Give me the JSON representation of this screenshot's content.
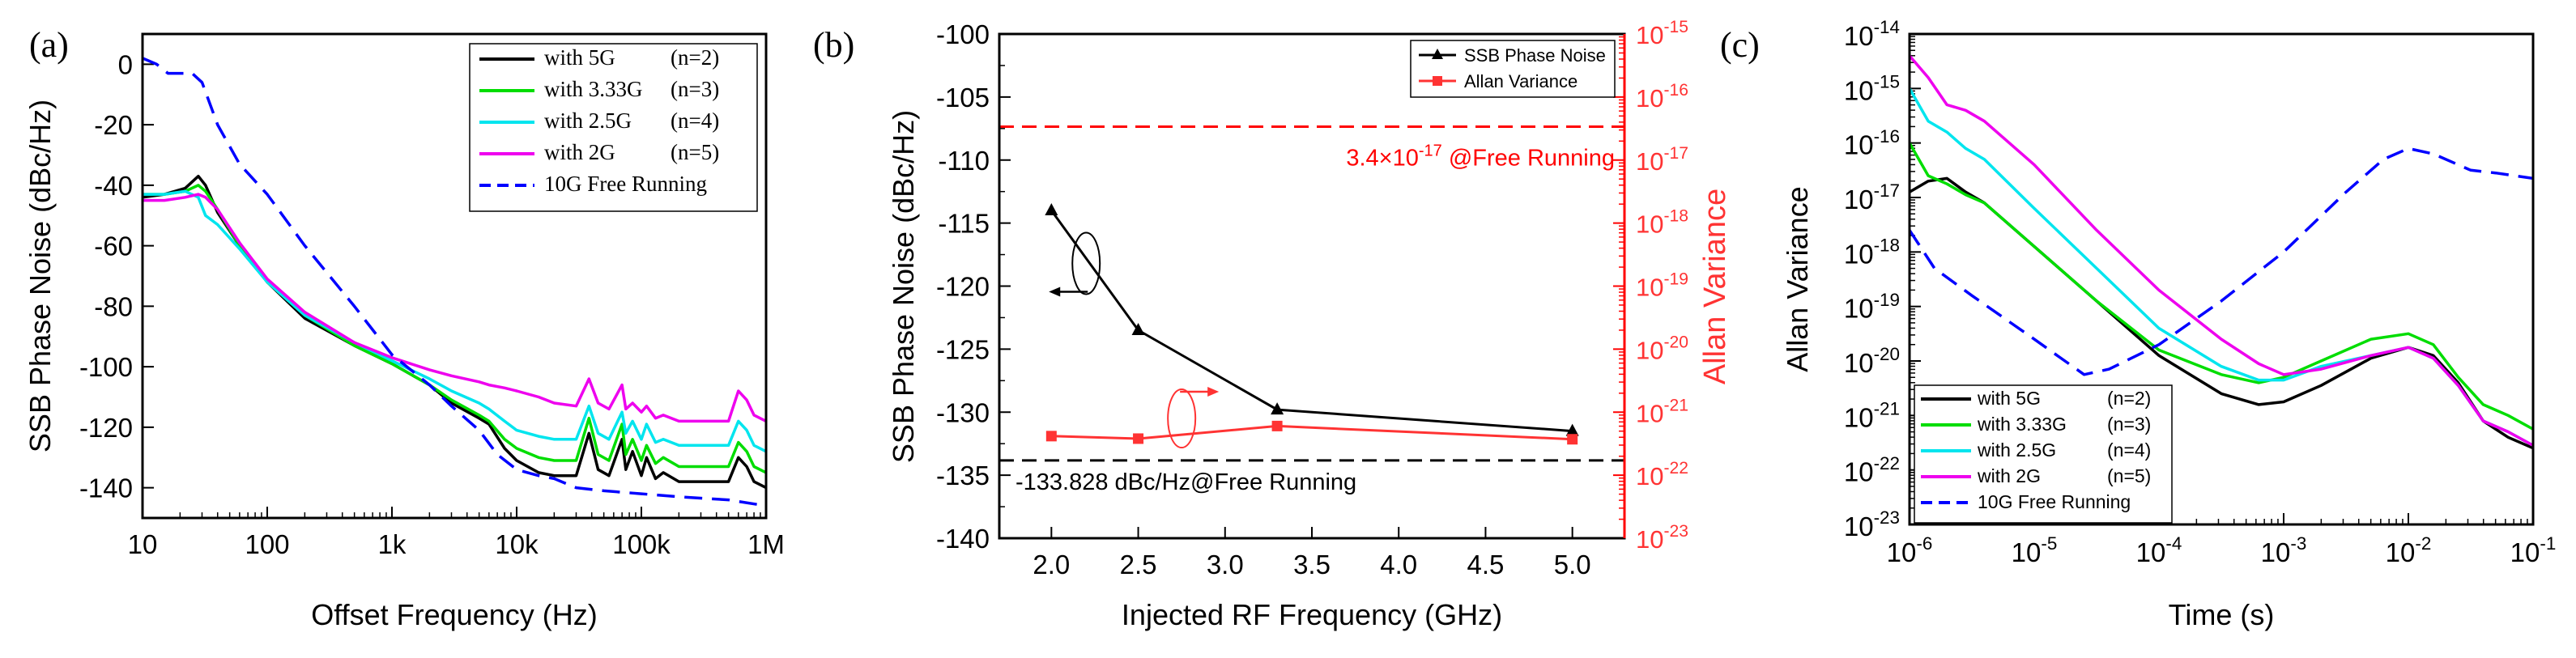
{
  "chart_data": [
    {
      "panel": "(a)",
      "type": "line",
      "xlabel": "Offset Frequency (Hz)",
      "ylabel": "SSB Phase Noise (dBc/Hz)",
      "xscale": "log",
      "xlim": [
        10,
        1000000
      ],
      "ylim": [
        -150,
        10
      ],
      "xticks": [
        10,
        100,
        1000,
        10000,
        100000,
        1000000
      ],
      "xtick_labels": [
        "10",
        "100",
        "1k",
        "10k",
        "100k",
        "1M"
      ],
      "yticks": [
        0,
        -20,
        -40,
        -60,
        -80,
        -100,
        -120,
        -140
      ],
      "ytick_labels": [
        "0",
        "-20",
        "-40",
        "-60",
        "-80",
        "-100",
        "-120",
        "-140"
      ],
      "legend_position": "top-right",
      "series": [
        {
          "name": "with 5G",
          "tag": "(n=2)",
          "color": "#000000",
          "dash": "solid",
          "x": [
            10,
            15,
            22,
            28,
            32,
            40,
            60,
            100,
            200,
            500,
            1000,
            2000,
            3000,
            5000,
            6000,
            8000,
            10000,
            15000,
            20000,
            30000,
            38000,
            45000,
            55000,
            70000,
            75000,
            85000,
            100000,
            110000,
            130000,
            150000,
            200000,
            300000,
            400000,
            500000,
            600000,
            700000,
            800000,
            1000000
          ],
          "y": [
            -44,
            -43,
            -41,
            -37,
            -40,
            -49,
            -60,
            -72,
            -84,
            -93,
            -99,
            -106,
            -112,
            -117,
            -119,
            -127,
            -131,
            -135,
            -136,
            -136,
            -122,
            -134,
            -136,
            -124,
            -134,
            -128,
            -136,
            -130,
            -137,
            -135,
            -138,
            -138,
            -138,
            -138,
            -130,
            -133,
            -138,
            -140
          ]
        },
        {
          "name": "with 3.33G",
          "tag": "(n=3)",
          "color": "#00dd00",
          "dash": "solid",
          "x": [
            10,
            15,
            22,
            28,
            32,
            40,
            60,
            100,
            200,
            500,
            1000,
            2000,
            3000,
            5000,
            6000,
            8000,
            10000,
            15000,
            20000,
            30000,
            38000,
            45000,
            55000,
            70000,
            75000,
            85000,
            100000,
            110000,
            130000,
            150000,
            200000,
            300000,
            400000,
            500000,
            600000,
            700000,
            800000,
            1000000
          ],
          "y": [
            -43,
            -43,
            -42,
            -40,
            -42,
            -48,
            -60,
            -72,
            -83,
            -93,
            -99,
            -106,
            -111,
            -116,
            -118,
            -124,
            -127,
            -130,
            -131,
            -131,
            -117,
            -129,
            -131,
            -119,
            -129,
            -124,
            -131,
            -126,
            -132,
            -130,
            -133,
            -133,
            -133,
            -133,
            -125,
            -128,
            -133,
            -135
          ]
        },
        {
          "name": "with 2.5G",
          "tag": "(n=4)",
          "color": "#00e5ee",
          "dash": "solid",
          "x": [
            10,
            15,
            22,
            28,
            32,
            40,
            60,
            100,
            200,
            500,
            1000,
            2000,
            3000,
            5000,
            6000,
            8000,
            10000,
            15000,
            20000,
            30000,
            38000,
            45000,
            55000,
            70000,
            75000,
            85000,
            100000,
            110000,
            130000,
            150000,
            200000,
            300000,
            400000,
            500000,
            600000,
            700000,
            800000,
            1000000
          ],
          "y": [
            -43,
            -43,
            -42,
            -44,
            -50,
            -53,
            -61,
            -72,
            -83,
            -92,
            -98,
            -104,
            -108,
            -112,
            -114,
            -118,
            -121,
            -123,
            -124,
            -124,
            -113,
            -122,
            -124,
            -115,
            -122,
            -118,
            -124,
            -119,
            -125,
            -124,
            -126,
            -126,
            -126,
            -126,
            -118,
            -121,
            -126,
            -128
          ]
        },
        {
          "name": "with 2G",
          "tag": "(n=5)",
          "color": "#ee00ee",
          "dash": "solid",
          "x": [
            10,
            15,
            22,
            28,
            32,
            40,
            60,
            100,
            200,
            500,
            1000,
            2000,
            3000,
            5000,
            6000,
            8000,
            10000,
            15000,
            20000,
            30000,
            38000,
            45000,
            55000,
            70000,
            75000,
            85000,
            100000,
            110000,
            130000,
            150000,
            200000,
            300000,
            400000,
            500000,
            600000,
            700000,
            800000,
            1000000
          ],
          "y": [
            -45,
            -45,
            -44,
            -43,
            -44,
            -48,
            -59,
            -71,
            -82,
            -92,
            -97,
            -101,
            -103,
            -105,
            -106,
            -107,
            -108,
            -110,
            -112,
            -113,
            -104,
            -112,
            -114,
            -106,
            -114,
            -112,
            -115,
            -113,
            -117,
            -116,
            -118,
            -118,
            -118,
            -118,
            -108,
            -111,
            -116,
            -118
          ]
        },
        {
          "name": "10G Free Running",
          "tag": "",
          "color": "#0000ff",
          "dash": "dashed",
          "x": [
            10,
            13,
            16,
            20,
            25,
            30,
            40,
            60,
            100,
            200,
            500,
            1000,
            2000,
            3000,
            5000,
            7000,
            10000,
            15000,
            20000,
            30000,
            50000,
            100000,
            200000,
            500000,
            1000000
          ],
          "y": [
            2,
            0,
            -3,
            -3,
            -3,
            -6,
            -20,
            -33,
            -43,
            -60,
            -80,
            -96,
            -106,
            -113,
            -121,
            -129,
            -134,
            -136,
            -137,
            -140,
            -141,
            -142,
            -143,
            -144,
            -146
          ]
        }
      ]
    },
    {
      "panel": "(b)",
      "type": "line",
      "xlabel": "Injected RF Frequency (GHz)",
      "ylabel": "SSB Phase Noise (dBc/Hz)",
      "ylabel_right": "Allan Variance",
      "xlim": [
        1.7,
        5.3
      ],
      "ylim": [
        -140,
        -100
      ],
      "xticks": [
        2.0,
        2.5,
        3.0,
        3.5,
        4.0,
        4.5,
        5.0
      ],
      "xtick_labels": [
        "2.0",
        "2.5",
        "3.0",
        "3.5",
        "4.0",
        "4.5",
        "5.0"
      ],
      "yticks": [
        -100,
        -105,
        -110,
        -115,
        -120,
        -125,
        -130,
        -135,
        -140
      ],
      "ytick_labels": [
        "-100",
        "-105",
        "-110",
        "-115",
        "-120",
        "-125",
        "-130",
        "-135",
        "-140"
      ],
      "y2scale": "log",
      "y2lim_exp": [
        -23,
        -15
      ],
      "y2tick_exps": [
        -15,
        -16,
        -17,
        -18,
        -19,
        -20,
        -21,
        -22,
        -23
      ],
      "legend_position": "top-right",
      "series": [
        {
          "name": "SSB Phase Noise",
          "axis": "left",
          "marker": "triangle",
          "color": "#000000",
          "x": [
            2.0,
            2.5,
            3.3,
            5.0
          ],
          "y": [
            -114,
            -123.5,
            -129.8,
            -131.5
          ]
        },
        {
          "name": "Allan Variance",
          "axis": "right",
          "marker": "square",
          "color": "#ff3333",
          "x": [
            2.0,
            2.5,
            3.3,
            5.0
          ],
          "y_exp": [
            -21.38,
            -21.42,
            -21.22,
            -21.43
          ]
        }
      ],
      "reference_lines": [
        {
          "axis": "left",
          "value": -133.828,
          "color": "#000000",
          "label": "-133.828 dBc/Hz@Free Running"
        },
        {
          "axis": "right",
          "value_exp": -16.47,
          "color": "#ff0000",
          "label_main": "3.4×10",
          "label_exp": "-17",
          "label_tail": " @Free Running"
        }
      ]
    },
    {
      "panel": "(c)",
      "type": "line",
      "xlabel": "Time (s)",
      "ylabel": "Allan Variance",
      "xscale": "log",
      "yscale": "log",
      "xlim_exp": [
        -6,
        -1
      ],
      "ylim_exp": [
        -23,
        -14
      ],
      "xtick_exps": [
        -6,
        -5,
        -4,
        -3,
        -2,
        -1
      ],
      "ytick_exps": [
        -14,
        -15,
        -16,
        -17,
        -18,
        -19,
        -20,
        -21,
        -22,
        -23
      ],
      "legend_position": "bottom-left",
      "series": [
        {
          "name": "with 5G",
          "tag": "(n=2)",
          "color": "#000000",
          "dash": "solid",
          "x_exp": [
            -6,
            -5.85,
            -5.7,
            -5.55,
            -5.4,
            -5,
            -4.5,
            -4,
            -3.5,
            -3.2,
            -3,
            -2.7,
            -2.3,
            -2,
            -1.8,
            -1.6,
            -1.4,
            -1.2,
            -1
          ],
          "y_exp": [
            -16.9,
            -16.7,
            -16.65,
            -16.9,
            -17.1,
            -17.9,
            -18.9,
            -19.9,
            -20.6,
            -20.8,
            -20.75,
            -20.45,
            -19.95,
            -19.75,
            -19.9,
            -20.4,
            -21.1,
            -21.4,
            -21.6
          ]
        },
        {
          "name": "with 3.33G",
          "tag": "(n=3)",
          "color": "#00dd00",
          "dash": "solid",
          "x_exp": [
            -6,
            -5.85,
            -5.7,
            -5.55,
            -5.4,
            -5,
            -4.5,
            -4,
            -3.5,
            -3.2,
            -3,
            -2.7,
            -2.3,
            -2,
            -1.8,
            -1.6,
            -1.4,
            -1.2,
            -1
          ],
          "y_exp": [
            -16.0,
            -16.6,
            -16.75,
            -16.95,
            -17.1,
            -17.9,
            -18.9,
            -19.8,
            -20.25,
            -20.4,
            -20.3,
            -20.0,
            -19.6,
            -19.5,
            -19.7,
            -20.3,
            -20.8,
            -21.0,
            -21.25
          ]
        },
        {
          "name": "with 2.5G",
          "tag": "(n=4)",
          "color": "#00e5ee",
          "dash": "solid",
          "x_exp": [
            -6,
            -5.85,
            -5.7,
            -5.55,
            -5.4,
            -5,
            -4.5,
            -4,
            -3.5,
            -3.2,
            -3,
            -2.7,
            -2.3,
            -2,
            -1.8,
            -1.6,
            -1.4,
            -1.2,
            -1
          ],
          "y_exp": [
            -15.0,
            -15.6,
            -15.8,
            -16.1,
            -16.3,
            -17.2,
            -18.3,
            -19.4,
            -20.1,
            -20.35,
            -20.35,
            -20.1,
            -19.9,
            -19.75,
            -19.95,
            -20.45,
            -21.1,
            -21.3,
            -21.55
          ]
        },
        {
          "name": "with 2G",
          "tag": "(n=5)",
          "color": "#ee00ee",
          "dash": "solid",
          "x_exp": [
            -6,
            -5.85,
            -5.7,
            -5.55,
            -5.4,
            -5,
            -4.5,
            -4,
            -3.5,
            -3.2,
            -3,
            -2.7,
            -2.3,
            -2,
            -1.8,
            -1.6,
            -1.4,
            -1.2,
            -1
          ],
          "y_exp": [
            -14.4,
            -14.8,
            -15.3,
            -15.4,
            -15.6,
            -16.4,
            -17.6,
            -18.7,
            -19.6,
            -20.05,
            -20.25,
            -20.15,
            -19.9,
            -19.75,
            -19.95,
            -20.45,
            -21.1,
            -21.3,
            -21.55
          ]
        },
        {
          "name": "10G Free Running",
          "tag": "",
          "color": "#0000ff",
          "dash": "dashed",
          "x_exp": [
            -6,
            -5.8,
            -5.5,
            -5,
            -4.6,
            -4.4,
            -4,
            -3.5,
            -3,
            -2.5,
            -2.2,
            -2,
            -1.8,
            -1.5,
            -1.3,
            -1
          ],
          "y_exp": [
            -17.6,
            -18.3,
            -18.8,
            -19.6,
            -20.25,
            -20.15,
            -19.7,
            -18.9,
            -18.0,
            -16.9,
            -16.3,
            -16.1,
            -16.2,
            -16.5,
            -16.55,
            -16.65
          ]
        }
      ]
    }
  ]
}
